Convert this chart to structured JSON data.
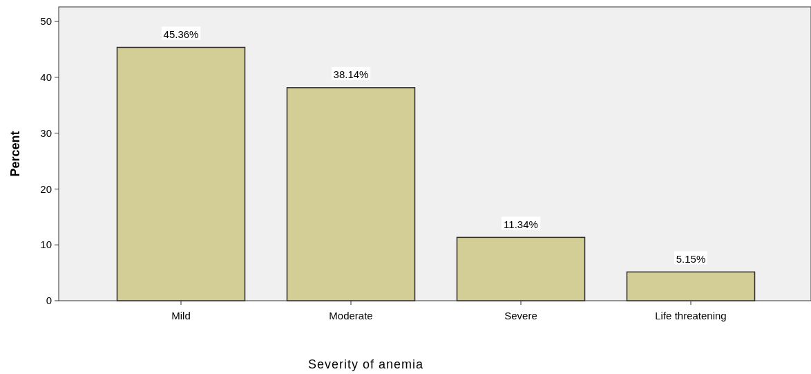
{
  "chart_data": {
    "type": "bar",
    "xlabel": "Severity of anemia",
    "ylabel": "Percent",
    "categories": [
      "Mild",
      "Moderate",
      "Severe",
      "Life threatening"
    ],
    "values": [
      45.36,
      38.14,
      11.34,
      5.15
    ],
    "value_labels": [
      "45.36%",
      "38.14%",
      "11.34%",
      "5.15%"
    ],
    "color": "#d3cd96",
    "ylim": [
      0,
      52.6
    ],
    "yticks": [
      0,
      10,
      20,
      30,
      40,
      50
    ],
    "grid": false
  }
}
